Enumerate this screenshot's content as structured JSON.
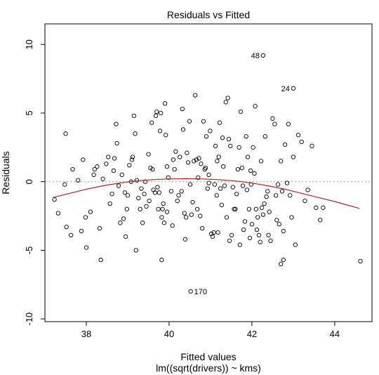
{
  "chart_data": {
    "type": "scatter",
    "title": "Residuals vs Fitted",
    "xlabel": "Fitted values",
    "subtitle": "lm((sqrt(drivers)) ~ kms)",
    "ylabel": "Residuals",
    "xlim": [
      37.0,
      44.9
    ],
    "ylim": [
      -10.2,
      11.5
    ],
    "x_ticks": [
      38,
      40,
      42,
      44
    ],
    "y_ticks": [
      -10,
      -5,
      0,
      5,
      10
    ],
    "zero_line": 0,
    "colors": {
      "points": "#000000",
      "smooth": "#b22222",
      "zero_line": "#9a9a9a"
    },
    "points": [
      [
        37.23,
        -1.3
      ],
      [
        37.32,
        -2.3
      ],
      [
        37.5,
        3.5
      ],
      [
        37.52,
        -3.3
      ],
      [
        37.63,
        -3.9
      ],
      [
        37.67,
        0.9
      ],
      [
        37.8,
        0.1
      ],
      [
        37.88,
        -3.6
      ],
      [
        37.92,
        1.6
      ],
      [
        37.98,
        -2.6
      ],
      [
        38.0,
        -4.8
      ],
      [
        38.1,
        -2.2
      ],
      [
        38.18,
        0.5
      ],
      [
        38.2,
        0.9
      ],
      [
        38.26,
        1.1
      ],
      [
        38.32,
        -3.4
      ],
      [
        38.35,
        -5.7
      ],
      [
        38.4,
        0.2
      ],
      [
        38.48,
        1.3
      ],
      [
        38.53,
        1.8
      ],
      [
        38.57,
        -1.6
      ],
      [
        38.62,
        -0.9
      ],
      [
        38.66,
        0.8
      ],
      [
        38.68,
        1.7
      ],
      [
        38.72,
        4.2
      ],
      [
        38.74,
        2.8
      ],
      [
        38.78,
        -0.3
      ],
      [
        38.82,
        -3.0
      ],
      [
        38.86,
        0.5
      ],
      [
        38.9,
        -2.7
      ],
      [
        38.93,
        -0.8
      ],
      [
        38.95,
        -4.0
      ],
      [
        38.98,
        -2.0
      ],
      [
        39.0,
        -1.0
      ],
      [
        39.04,
        1.2
      ],
      [
        39.08,
        0.0
      ],
      [
        39.1,
        1.6
      ],
      [
        39.12,
        1.8
      ],
      [
        39.15,
        4.8
      ],
      [
        39.18,
        3.5
      ],
      [
        39.2,
        -5.0
      ],
      [
        39.22,
        0.1
      ],
      [
        39.26,
        -1.2
      ],
      [
        39.3,
        -2.0
      ],
      [
        39.33,
        -0.5
      ],
      [
        39.36,
        -3.0
      ],
      [
        39.4,
        -0.9
      ],
      [
        39.42,
        0.0
      ],
      [
        39.45,
        -1.8
      ],
      [
        39.5,
        2.0
      ],
      [
        39.52,
        -1.4
      ],
      [
        39.55,
        1.0
      ],
      [
        39.58,
        4.3
      ],
      [
        39.6,
        0.9
      ],
      [
        39.62,
        -0.6
      ],
      [
        39.66,
        -0.8
      ],
      [
        39.68,
        4.8
      ],
      [
        39.7,
        5.1
      ],
      [
        39.72,
        -0.4
      ],
      [
        39.74,
        -2.0
      ],
      [
        39.76,
        -0.8
      ],
      [
        39.78,
        3.7
      ],
      [
        39.8,
        5.0
      ],
      [
        39.82,
        -5.7
      ],
      [
        39.84,
        -2.0
      ],
      [
        39.86,
        -1.6
      ],
      [
        39.88,
        -3.0
      ],
      [
        39.9,
        5.7
      ],
      [
        39.92,
        3.4
      ],
      [
        39.95,
        1.1
      ],
      [
        39.98,
        0.3
      ],
      [
        40.05,
        -0.7
      ],
      [
        40.08,
        -3.2
      ],
      [
        40.1,
        1.6
      ],
      [
        40.13,
        0.9
      ],
      [
        40.16,
        2.2
      ],
      [
        40.2,
        -1.4
      ],
      [
        40.23,
        -1.0
      ],
      [
        40.26,
        1.8
      ],
      [
        40.3,
        -0.7
      ],
      [
        40.32,
        5.3
      ],
      [
        40.34,
        3.8
      ],
      [
        40.37,
        -2.3
      ],
      [
        40.39,
        -4.2
      ],
      [
        40.41,
        -2.6
      ],
      [
        40.43,
        2.1
      ],
      [
        40.46,
        1.4
      ],
      [
        40.49,
        4.4
      ],
      [
        40.51,
        -0.2
      ],
      [
        40.54,
        -2.4
      ],
      [
        40.57,
        -1.5
      ],
      [
        40.6,
        1.5
      ],
      [
        40.63,
        6.3
      ],
      [
        40.66,
        1.6
      ],
      [
        40.68,
        -2.0
      ],
      [
        40.7,
        0.3
      ],
      [
        40.72,
        1.7
      ],
      [
        40.75,
        -2.5
      ],
      [
        40.77,
        1.3
      ],
      [
        40.8,
        -3.4
      ],
      [
        40.83,
        4.4
      ],
      [
        40.86,
        0.9
      ],
      [
        40.88,
        1.0
      ],
      [
        40.9,
        3.3
      ],
      [
        40.93,
        -0.5
      ],
      [
        40.96,
        0.5
      ],
      [
        40.99,
        3.7
      ],
      [
        41.02,
        -3.8
      ],
      [
        41.05,
        -4.0
      ],
      [
        41.08,
        -3.7
      ],
      [
        41.1,
        -0.2
      ],
      [
        41.12,
        2.6
      ],
      [
        41.15,
        -1.0
      ],
      [
        41.18,
        -3.7
      ],
      [
        41.2,
        1.8
      ],
      [
        41.22,
        4.3
      ],
      [
        41.24,
        -0.5
      ],
      [
        41.27,
        -1.7
      ],
      [
        41.29,
        3.2
      ],
      [
        41.31,
        1.1
      ],
      [
        41.34,
        -0.3
      ],
      [
        41.37,
        5.8
      ],
      [
        41.39,
        -2.6
      ],
      [
        41.42,
        6.1
      ],
      [
        41.44,
        3.1
      ],
      [
        41.46,
        -4.3
      ],
      [
        41.48,
        2.6
      ],
      [
        41.51,
        -3.9
      ],
      [
        41.54,
        -0.4
      ],
      [
        41.57,
        -2.0
      ],
      [
        41.6,
        -2.0
      ],
      [
        41.63,
        -0.9
      ],
      [
        41.66,
        0.9
      ],
      [
        41.69,
        2.5
      ],
      [
        41.71,
        -4.6
      ],
      [
        41.73,
        5.1
      ],
      [
        41.76,
        1.0
      ],
      [
        41.78,
        -0.3
      ],
      [
        41.8,
        -3.5
      ],
      [
        41.83,
        -2.9
      ],
      [
        41.86,
        3.3
      ],
      [
        41.88,
        -0.6
      ],
      [
        41.9,
        1.8
      ],
      [
        41.93,
        -2.0
      ],
      [
        41.95,
        -4.1
      ],
      [
        41.97,
        0.8
      ],
      [
        42.0,
        -3.1
      ],
      [
        42.03,
        2.5
      ],
      [
        42.06,
        0.6
      ],
      [
        42.08,
        5.5
      ],
      [
        42.1,
        -2.0
      ],
      [
        42.12,
        -3.5
      ],
      [
        42.14,
        -2.6
      ],
      [
        42.17,
        -3.9
      ],
      [
        42.2,
        -4.4
      ],
      [
        42.22,
        1.5
      ],
      [
        42.24,
        -1.9
      ],
      [
        42.27,
        -2.4
      ],
      [
        42.3,
        -1.6
      ],
      [
        42.32,
        3.3
      ],
      [
        42.35,
        -1.1
      ],
      [
        42.38,
        -0.7
      ],
      [
        42.4,
        -3.9
      ],
      [
        42.42,
        -2.2
      ],
      [
        42.45,
        -4.3
      ],
      [
        42.5,
        4.6
      ],
      [
        42.55,
        4.2
      ],
      [
        42.58,
        -1.0
      ],
      [
        42.6,
        -2.8
      ],
      [
        42.63,
        -0.2
      ],
      [
        42.66,
        -3.1
      ],
      [
        42.7,
        1.5
      ],
      [
        42.73,
        -0.7
      ],
      [
        42.76,
        -3.6
      ],
      [
        42.8,
        2.7
      ],
      [
        42.85,
        -0.1
      ],
      [
        42.88,
        4.2
      ],
      [
        42.92,
        -1.0
      ],
      [
        42.96,
        -2.6
      ],
      [
        43.0,
        1.8
      ],
      [
        43.05,
        -4.6
      ],
      [
        43.12,
        3.4
      ],
      [
        43.2,
        2.9
      ],
      [
        43.28,
        -1.4
      ],
      [
        43.35,
        -0.6
      ],
      [
        43.45,
        2.6
      ],
      [
        43.55,
        -1.9
      ],
      [
        43.65,
        -2.8
      ],
      [
        43.72,
        -1.9
      ],
      [
        44.62,
        -5.8
      ],
      [
        37.48,
        -0.2
      ],
      [
        42.76,
        -5.7
      ],
      [
        42.7,
        -6.0
      ],
      [
        41.16,
        1.5
      ],
      [
        40.96,
        -0.1
      ],
      [
        39.95,
        -2.2
      ],
      [
        41.98,
        -0.2
      ],
      [
        39.82,
        -2.6
      ]
    ],
    "smooth_line": {
      "x": [
        37.2,
        37.6,
        38.0,
        38.4,
        38.8,
        39.2,
        39.6,
        40.0,
        40.4,
        40.8,
        41.2,
        41.6,
        42.0,
        42.4,
        42.8,
        43.2,
        43.6,
        44.0,
        44.6
      ],
      "y": [
        -1.15,
        -0.85,
        -0.55,
        -0.3,
        -0.1,
        0.05,
        0.15,
        0.2,
        0.22,
        0.2,
        0.15,
        0.05,
        -0.1,
        -0.3,
        -0.55,
        -0.85,
        -1.15,
        -1.45,
        -1.95
      ]
    },
    "labeled_points": [
      {
        "label": "48",
        "x": 42.27,
        "y": 9.2,
        "side": "left"
      },
      {
        "label": "24",
        "x": 43.0,
        "y": 6.8,
        "side": "left"
      },
      {
        "label": "170",
        "x": 40.52,
        "y": -8.0,
        "side": "right"
      }
    ]
  }
}
